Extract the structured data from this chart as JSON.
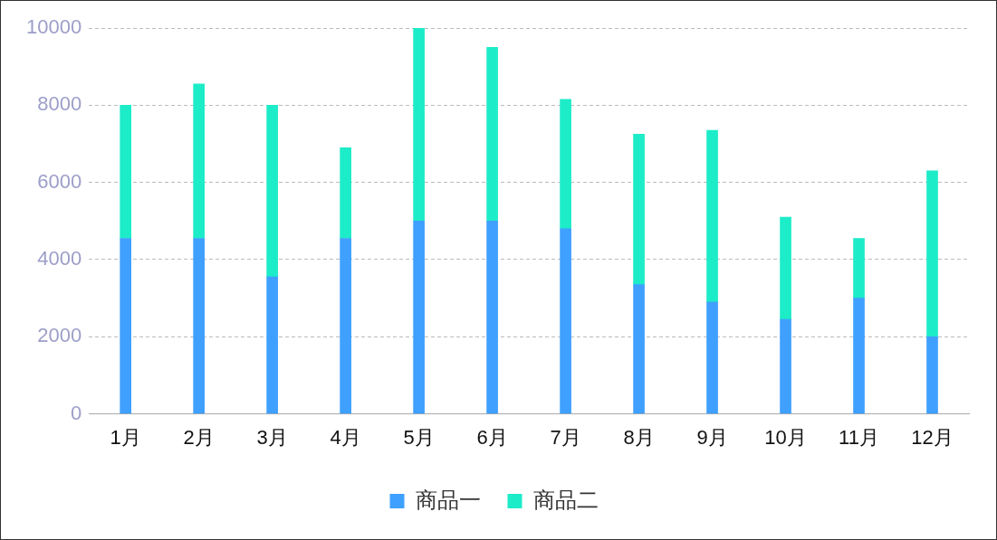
{
  "chart_data": {
    "type": "bar",
    "stacked": true,
    "categories": [
      "1月",
      "2月",
      "3月",
      "4月",
      "5月",
      "6月",
      "7月",
      "8月",
      "9月",
      "10月",
      "11月",
      "12月"
    ],
    "series": [
      {
        "name": "商品一",
        "color": "#3fa0ff",
        "values": [
          4550,
          4550,
          3550,
          4550,
          5000,
          5000,
          4800,
          3350,
          2900,
          2450,
          3000,
          2000
        ]
      },
      {
        "name": "商品二",
        "color": "#1decc8",
        "values": [
          3450,
          4000,
          4450,
          2350,
          5000,
          4500,
          3350,
          3900,
          4450,
          2650,
          1550,
          4300
        ]
      }
    ],
    "ylim": [
      0,
      10000
    ],
    "yticks": [
      0,
      2000,
      4000,
      6000,
      8000,
      10000
    ],
    "grid": "y",
    "legend": "bottom"
  }
}
